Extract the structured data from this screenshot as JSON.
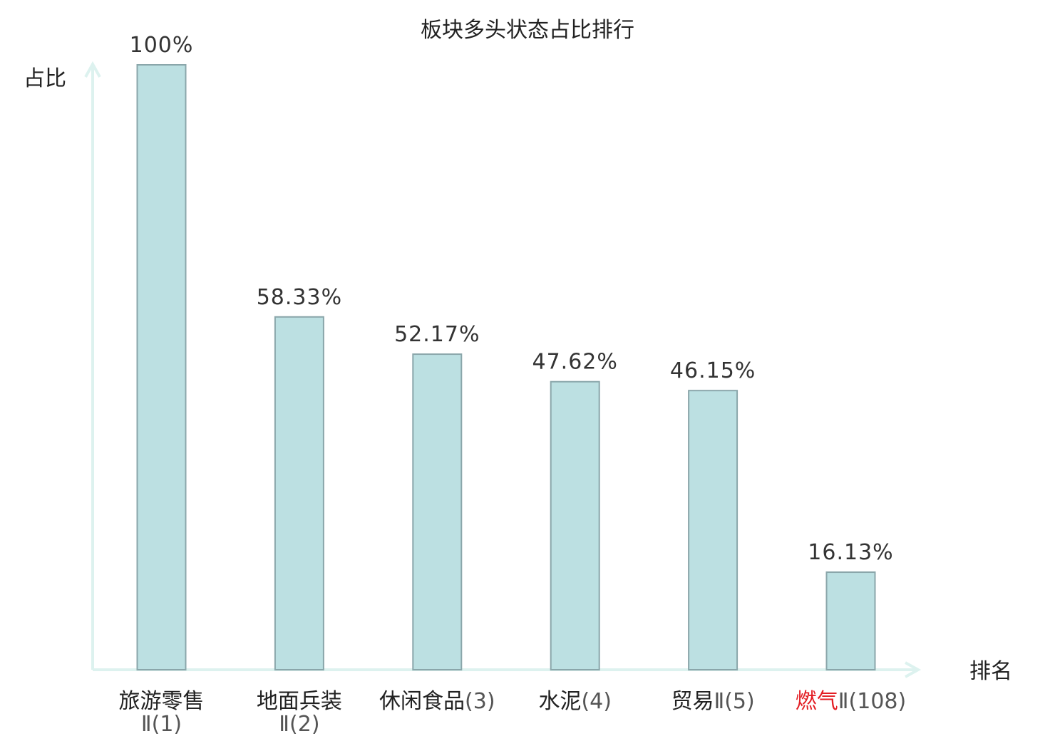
{
  "chart_data": {
    "type": "bar",
    "title": "板块多头状态占比排行",
    "ylabel": "占比",
    "xlabel": "排名",
    "ylim": [
      0,
      100
    ],
    "grid": false,
    "value_unit": "%",
    "values": [
      100,
      58.33,
      52.17,
      47.62,
      46.15,
      16.13
    ],
    "value_labels": [
      "100%",
      "58.33%",
      "52.17%",
      "47.62%",
      "46.15%",
      "16.13%"
    ],
    "categories": [
      {
        "name": "旅游零售",
        "rank_text": "Ⅱ(1)",
        "two_line": true,
        "highlight": false
      },
      {
        "name": "地面兵装",
        "rank_text": "Ⅱ(2)",
        "two_line": true,
        "highlight": false
      },
      {
        "name": "休闲食品",
        "rank_text": "(3)",
        "two_line": false,
        "highlight": false
      },
      {
        "name": "水泥",
        "rank_text": "(4)",
        "two_line": false,
        "highlight": false
      },
      {
        "name": "贸易",
        "rank_text": "Ⅱ(5)",
        "two_line": false,
        "highlight": false
      },
      {
        "name": "燃气",
        "rank_text": "Ⅱ(108)",
        "two_line": false,
        "highlight": true
      }
    ],
    "colors": {
      "bar_fill": "#bce0e2",
      "bar_stroke": "#8aa6aa",
      "axis": "#ddf2ef",
      "highlight": "#e31e24"
    }
  }
}
